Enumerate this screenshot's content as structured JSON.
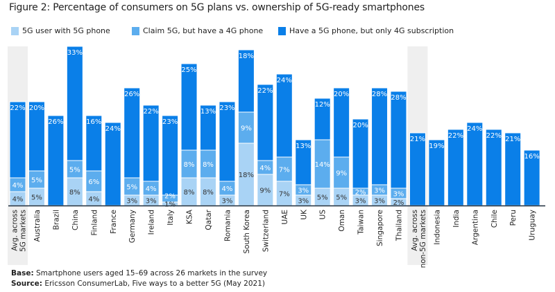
{
  "chart_data": {
    "type": "bar",
    "stacked": true,
    "title": "Figure 2: Percentage of consumers on 5G plans vs. ownership of 5G-ready smartphones",
    "categories": [
      "Avg. across 5G markets",
      "Australia",
      "Brazil",
      "China",
      "Finland",
      "France",
      "Germany",
      "Ireland",
      "Italy",
      "KSA",
      "Qatar",
      "Romania",
      "South Korea",
      "Switzerland",
      "UAE",
      "UK",
      "US",
      "Oman",
      "Taiwan",
      "Singapore",
      "Thailand",
      "Avg. across non-5G markets",
      "Indonesia",
      "India",
      "Argentina",
      "Chile",
      "Peru",
      "Uruguay"
    ],
    "highlighted_categories": [
      "Avg. across 5G markets",
      "Avg. across non-5G markets"
    ],
    "series": [
      {
        "name": "5G user with 5G phone",
        "color": "#a9d3f5",
        "label_color": "#333333",
        "values": [
          4,
          5,
          0,
          8,
          4,
          0,
          3,
          3,
          1,
          8,
          8,
          3,
          18,
          9,
          7,
          3,
          5,
          5,
          3,
          3,
          2,
          0,
          0,
          0,
          0,
          0,
          0,
          0
        ]
      },
      {
        "name": "Claim 5G, but have a 4G phone",
        "color": "#5cadee",
        "label_color": "#ffffff",
        "values": [
          4,
          5,
          0,
          5,
          6,
          0,
          5,
          4,
          2,
          8,
          8,
          4,
          9,
          4,
          7,
          3,
          14,
          9,
          2,
          3,
          3,
          0,
          0,
          0,
          0,
          0,
          0,
          0
        ]
      },
      {
        "name": "Have a 5G phone, but only 4G subscription",
        "color": "#0a7fe8",
        "label_color": "#ffffff",
        "values": [
          22,
          20,
          26,
          33,
          16,
          24,
          26,
          22,
          23,
          25,
          13,
          23,
          18,
          22,
          24,
          13,
          12,
          20,
          20,
          28,
          28,
          21,
          19,
          22,
          24,
          22,
          21,
          16
        ]
      }
    ],
    "value_suffix": "%",
    "legend_position": "top",
    "grid": false
  },
  "footnotes": {
    "base_label": "Base:",
    "base_text": " Smartphone users aged 15–69 across 26 markets in the survey",
    "source_label": "Source:",
    "source_text": " Ericsson ConsumerLab, Five ways to a better 5G (May 2021)"
  }
}
